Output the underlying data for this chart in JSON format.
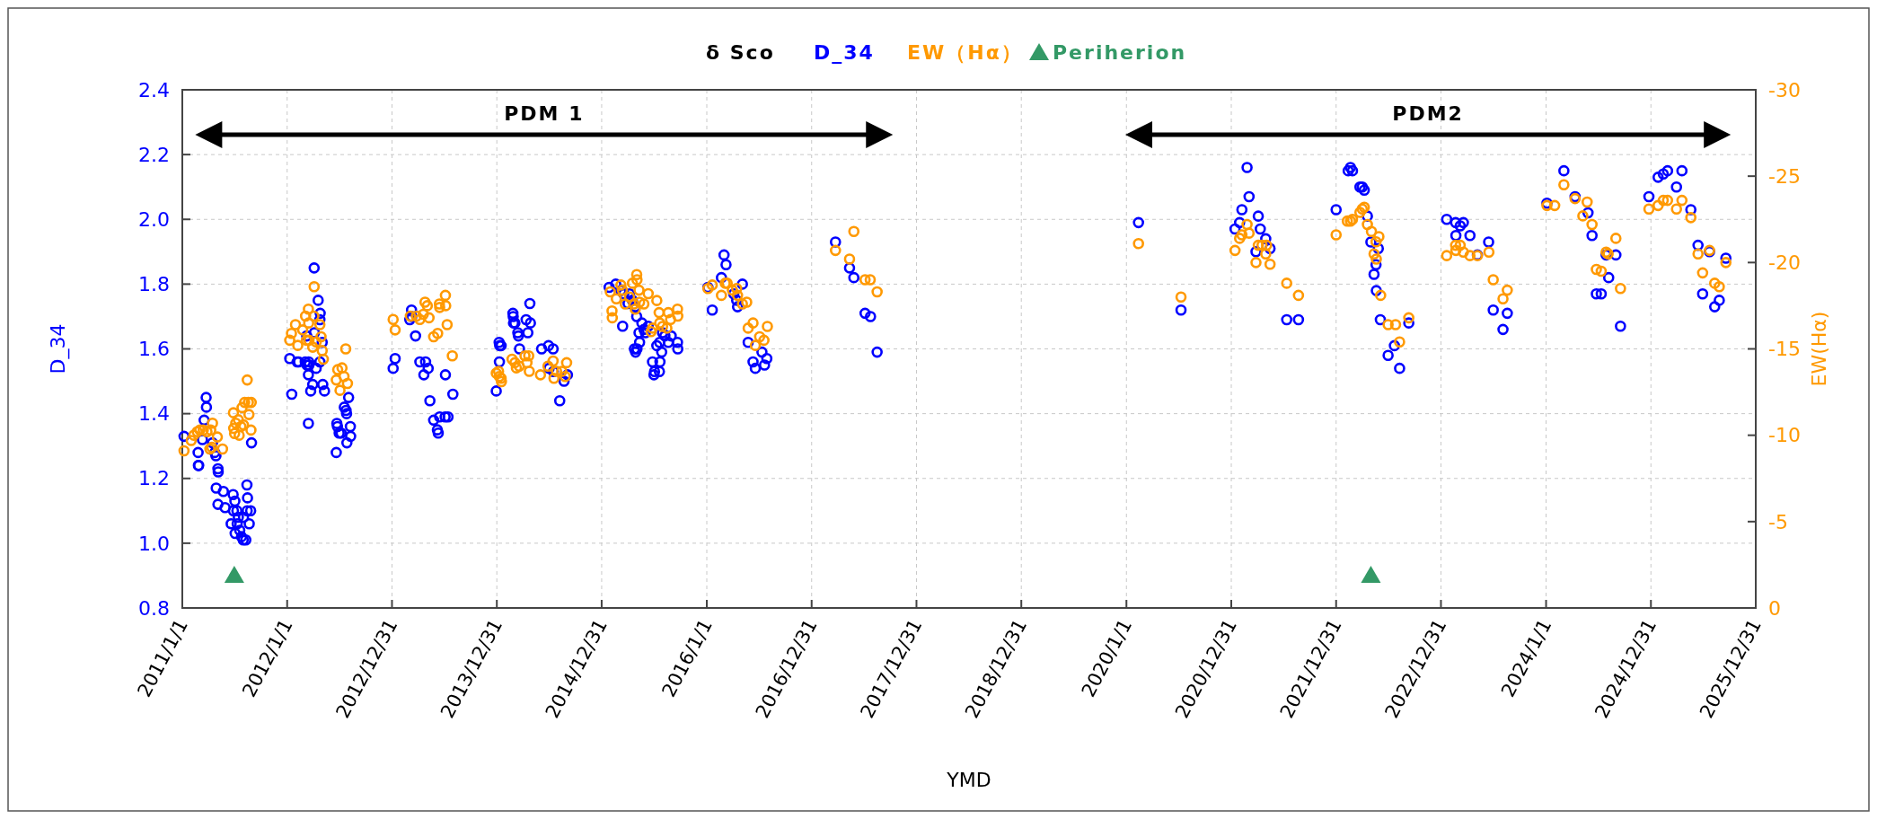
{
  "chart_data": {
    "type": "scatter",
    "legend_title": "δ Sco",
    "xlabel": "YMD",
    "ylabel": "D_34",
    "y2label": "EW(Hα)",
    "legend": "top",
    "grid": true,
    "marker": "circle",
    "xlim": [
      "2011-01-01",
      "2025-12-31"
    ],
    "xticks": [
      {
        "value": "2011-01-01",
        "label": "2011/1/1"
      },
      {
        "value": "2012-01-01",
        "label": "2012/1/1"
      },
      {
        "value": "2012-12-31",
        "label": "2012/12/31"
      },
      {
        "value": "2013-12-31",
        "label": "2013/12/31"
      },
      {
        "value": "2014-12-31",
        "label": "2014/12/31"
      },
      {
        "value": "2016-01-01",
        "label": "2016/1/1"
      },
      {
        "value": "2016-12-31",
        "label": "2016/12/31"
      },
      {
        "value": "2017-12-31",
        "label": "2017/12/31"
      },
      {
        "value": "2018-12-31",
        "label": "2018/12/31"
      },
      {
        "value": "2020-01-01",
        "label": "2020/1/1"
      },
      {
        "value": "2020-12-31",
        "label": "2020/12/31"
      },
      {
        "value": "2021-12-31",
        "label": "2021/12/31"
      },
      {
        "value": "2022-12-31",
        "label": "2022/12/31"
      },
      {
        "value": "2024-01-01",
        "label": "2024/1/1"
      },
      {
        "value": "2024-12-31",
        "label": "2024/12/31"
      },
      {
        "value": "2025-12-31",
        "label": "2025/12/31"
      }
    ],
    "ylim": [
      0.8,
      2.4
    ],
    "yticks": [
      0.8,
      {
        "value": 1,
        "label": "1.0"
      },
      1.2,
      1.4,
      1.6,
      1.8,
      {
        "value": 2,
        "label": "2.0"
      },
      2.2,
      2.4
    ],
    "y2lim": [
      0,
      -30
    ],
    "y2ticks": [
      0,
      -5,
      -10,
      -15,
      -20,
      -25,
      -30
    ],
    "annotations": [
      "PDM 1",
      "PDM2"
    ],
    "series": [
      {
        "name": "D_34",
        "color": "#0000ff",
        "marker": "circle",
        "x": [
          "2011-01-07",
          "2011-02-25",
          "2011-02-26",
          "2011-02-27",
          "2011-03-25",
          "2011-03-26",
          "2011-03-18",
          "2011-03-12",
          "2011-04-16",
          "2011-04-24",
          "2011-04-28",
          "2011-05-05",
          "2011-05-06",
          "2011-04-29",
          "2011-05-24",
          "2011-05-05",
          "2011-05-30",
          "2011-06-27",
          "2011-07-03",
          "2011-06-28",
          "2011-07-10",
          "2011-06-20",
          "2011-07-15",
          "2011-07-11",
          "2011-07-20",
          "2011-07-04",
          "2011-07-26",
          "2011-08-01",
          "2011-08-10",
          "2011-08-02",
          "2011-08-15",
          "2011-08-27",
          "2011-08-22",
          "2011-08-16",
          "2011-08-14",
          "2011-08-30",
          "2012-01-10",
          "2012-02-05",
          "2012-02-10",
          "2012-03-04",
          "2012-03-16",
          "2012-03-10",
          "2012-03-17",
          "2012-04-11",
          "2012-03-15",
          "2012-03-30",
          "2012-03-23",
          "2012-05-04",
          "2012-05-10",
          "2012-01-17",
          "2012-03-15",
          "2012-04-04",
          "2012-04-18",
          "2012-04-25",
          "2012-04-24",
          "2012-04-05",
          "2012-03-09",
          "2012-05-02",
          "2012-04-24",
          "2012-08-02",
          "2012-07-18",
          "2012-07-24",
          "2012-07-26",
          "2012-06-22",
          "2012-06-24",
          "2012-06-30",
          "2012-07-07",
          "2012-08-08",
          "2012-08-09",
          "2012-07-27",
          "2012-06-20",
          "2013-01-04",
          "2013-01-11",
          "2013-03-09",
          "2013-03-10",
          "2013-03-03",
          "2013-03-23",
          "2013-04-07",
          "2013-04-27",
          "2013-05-06",
          "2013-04-21",
          "2013-05-12",
          "2013-05-25",
          "2013-06-15",
          "2013-06-07",
          "2013-06-10",
          "2013-07-04",
          "2013-07-14",
          "2013-07-05",
          "2013-07-31",
          "2013-12-29",
          "2014-01-08",
          "2014-01-10",
          "2014-01-15",
          "2014-01-09",
          "2014-02-25",
          "2014-02-26",
          "2014-02-27",
          "2014-03-04",
          "2014-03-14",
          "2014-03-16",
          "2014-04-25",
          "2014-04-27",
          "2014-04-12",
          "2014-04-18",
          "2014-03-20",
          "2014-06-05",
          "2014-06-29",
          "2014-07-15",
          "2014-07-01",
          "2014-07-16",
          "2014-08-07",
          "2014-08-22",
          "2014-09-03",
          "2015-01-26",
          "2015-02-18",
          "2015-03-08",
          "2015-03-18",
          "2015-04-07",
          "2015-04-17",
          "2015-04-02",
          "2015-04-27",
          "2015-03-14",
          "2015-05-02",
          "2015-05-20",
          "2015-05-27",
          "2015-06-01",
          "2015-05-10",
          "2015-05-12",
          "2015-05-03",
          "2015-04-28",
          "2015-04-24",
          "2015-06-11",
          "2015-07-11",
          "2015-07-21",
          "2015-07-31",
          "2015-08-08",
          "2015-08-30",
          "2015-08-20",
          "2015-09-21",
          "2015-09-22",
          "2015-07-28",
          "2015-06-26",
          "2015-07-22",
          "2015-07-03",
          "2015-07-20",
          "2015-07-01",
          "2016-01-05",
          "2016-01-20",
          "2016-02-21",
          "2016-03-01",
          "2016-03-08",
          "2016-04-04",
          "2016-04-14",
          "2016-04-17",
          "2016-05-04",
          "2016-05-24",
          "2016-06-10",
          "2016-06-18",
          "2016-07-11",
          "2016-07-28",
          "2016-07-20",
          "2017-03-24",
          "2017-05-12",
          "2017-05-27",
          "2017-07-05",
          "2017-07-24",
          "2017-08-16",
          "2020-02-12",
          "2020-07-09",
          "2021-01-13",
          "2021-01-29",
          "2021-02-06",
          "2021-02-24",
          "2021-03-03",
          "2021-04-04",
          "2021-04-11",
          "2021-04-30",
          "2021-05-15",
          "2021-03-27",
          "2021-07-12",
          "2021-08-22",
          "2021-12-31",
          "2022-02-11",
          "2022-02-19",
          "2022-02-26",
          "2022-03-24",
          "2022-04-01",
          "2022-04-08",
          "2022-04-19",
          "2022-05-01",
          "2022-05-27",
          "2022-05-19",
          "2022-05-12",
          "2022-05-20",
          "2022-06-03",
          "2022-06-30",
          "2022-07-22",
          "2022-08-09",
          "2022-09-10",
          "2023-01-20",
          "2023-02-20",
          "2023-03-08",
          "2023-03-19",
          "2023-02-21",
          "2023-04-11",
          "2023-05-07",
          "2023-06-15",
          "2023-07-01",
          "2023-08-04",
          "2023-08-19",
          "2024-01-04",
          "2024-03-03",
          "2024-04-11",
          "2024-05-26",
          "2024-06-09",
          "2024-07-28",
          "2024-08-31",
          "2024-08-06",
          "2024-06-24",
          "2024-07-11",
          "2024-09-16",
          "2024-12-24",
          "2025-01-25",
          "2025-02-12",
          "2025-02-27",
          "2025-04-18",
          "2025-03-30",
          "2025-05-19",
          "2025-06-13",
          "2025-07-23",
          "2025-09-18",
          "2025-06-29",
          "2025-08-10",
          "2025-08-26"
        ],
        "values": [
          1.33,
          1.28,
          1.24,
          1.24,
          1.45,
          1.42,
          1.38,
          1.32,
          1.31,
          1.28,
          1.27,
          1.23,
          1.22,
          1.17,
          1.16,
          1.12,
          1.11,
          1.15,
          1.13,
          1.1,
          1.1,
          1.06,
          1.08,
          1.06,
          1.04,
          1.03,
          1.02,
          1.01,
          1.01,
          1.08,
          1.1,
          1.1,
          1.06,
          1.14,
          1.18,
          1.31,
          1.57,
          1.56,
          1.56,
          1.56,
          1.56,
          1.55,
          1.55,
          1.54,
          1.52,
          1.49,
          1.47,
          1.49,
          1.47,
          1.46,
          1.37,
          1.85,
          1.75,
          1.71,
          1.69,
          1.65,
          1.64,
          1.62,
          1.56,
          1.45,
          1.42,
          1.41,
          1.4,
          1.37,
          1.36,
          1.34,
          1.34,
          1.36,
          1.33,
          1.31,
          1.28,
          1.54,
          1.57,
          1.72,
          1.7,
          1.69,
          1.64,
          1.56,
          1.56,
          1.54,
          1.52,
          1.44,
          1.38,
          1.39,
          1.35,
          1.34,
          1.39,
          1.39,
          1.52,
          1.46,
          1.47,
          1.62,
          1.61,
          1.61,
          1.56,
          1.71,
          1.7,
          1.68,
          1.68,
          1.65,
          1.64,
          1.74,
          1.68,
          1.69,
          1.65,
          1.6,
          1.6,
          1.61,
          1.6,
          1.54,
          1.53,
          1.44,
          1.5,
          1.52,
          1.79,
          1.8,
          1.78,
          1.77,
          1.77,
          1.75,
          1.74,
          1.73,
          1.67,
          1.7,
          1.68,
          1.66,
          1.65,
          1.65,
          1.62,
          1.6,
          1.59,
          1.6,
          1.67,
          1.61,
          1.62,
          1.65,
          1.64,
          1.64,
          1.62,
          1.62,
          1.6,
          1.59,
          1.56,
          1.56,
          1.53,
          1.53,
          1.52,
          1.79,
          1.72,
          1.82,
          1.89,
          1.86,
          1.77,
          1.75,
          1.73,
          1.8,
          1.62,
          1.56,
          1.54,
          1.59,
          1.57,
          1.55,
          1.93,
          1.85,
          1.82,
          1.71,
          1.7,
          1.59,
          1.99,
          1.72,
          1.97,
          1.99,
          2.03,
          2.16,
          2.07,
          2.01,
          1.97,
          1.94,
          1.91,
          1.9,
          1.69,
          1.69,
          2.03,
          2.15,
          2.16,
          2.15,
          2.1,
          2.1,
          2.09,
          2.01,
          1.93,
          1.91,
          1.86,
          1.83,
          1.78,
          1.69,
          1.58,
          1.61,
          1.54,
          1.68,
          2.0,
          1.99,
          1.98,
          1.99,
          1.95,
          1.95,
          1.89,
          1.93,
          1.72,
          1.66,
          1.71,
          2.05,
          2.15,
          2.07,
          2.02,
          1.95,
          1.89,
          1.89,
          1.82,
          1.77,
          1.77,
          1.67,
          2.07,
          2.13,
          2.14,
          2.15,
          2.15,
          2.1,
          2.03,
          1.92,
          1.9,
          1.88,
          1.77,
          1.73,
          1.75
        ]
      },
      {
        "name": "EW（Hα）",
        "color": "#ff9900",
        "marker": "circle",
        "axis": "y2",
        "x": [
          "2011-01-07",
          "2011-02-01",
          "2011-02-10",
          "2011-02-22",
          "2011-03-03",
          "2011-03-15",
          "2011-03-28",
          "2011-04-10",
          "2011-04-16",
          "2011-04-07",
          "2011-04-14",
          "2011-05-03",
          "2011-05-21",
          "2011-06-28",
          "2011-06-29",
          "2011-07-06",
          "2011-07-15",
          "2011-07-24",
          "2011-08-02",
          "2011-07-02",
          "2011-07-18",
          "2011-07-28",
          "2011-08-06",
          "2011-08-19",
          "2011-08-29",
          "2011-08-21",
          "2011-08-15",
          "2011-08-28",
          "2012-01-10",
          "2012-01-16",
          "2012-01-30",
          "2012-02-07",
          "2012-02-24",
          "2012-03-05",
          "2012-03-15",
          "2012-03-16",
          "2012-03-08",
          "2012-03-17",
          "2012-04-03",
          "2012-04-11",
          "2012-03-30",
          "2012-04-04",
          "2012-04-24",
          "2012-04-28",
          "2012-05-02",
          "2012-05-06",
          "2012-06-20",
          "2012-07-03",
          "2012-06-25",
          "2012-07-10",
          "2012-07-17",
          "2012-07-29",
          "2012-07-23",
          "2013-01-04",
          "2013-01-11",
          "2013-03-05",
          "2013-03-26",
          "2013-04-07",
          "2013-04-19",
          "2013-04-25",
          "2013-05-09",
          "2013-05-03",
          "2013-06-14",
          "2013-06-15",
          "2013-07-05",
          "2013-07-06",
          "2013-07-11",
          "2013-05-25",
          "2013-06-08",
          "2013-07-29",
          "2013-12-29",
          "2014-01-06",
          "2014-01-15",
          "2014-01-16",
          "2014-01-09",
          "2014-02-22",
          "2014-03-04",
          "2014-03-09",
          "2014-03-19",
          "2014-04-08",
          "2014-04-21",
          "2014-04-15",
          "2014-04-23",
          "2014-06-01",
          "2014-06-27",
          "2014-07-15",
          "2014-07-27",
          "2014-08-14",
          "2014-08-26",
          "2014-08-31",
          "2014-07-18",
          "2015-01-30",
          "2015-02-05",
          "2015-02-06",
          "2015-03-08",
          "2015-03-13",
          "2015-04-17",
          "2015-05-02",
          "2015-05-03",
          "2015-05-10",
          "2015-06-11",
          "2015-02-20",
          "2015-03-23",
          "2015-04-07",
          "2015-04-22",
          "2015-05-12",
          "2015-05-27",
          "2015-07-11",
          "2015-04-27",
          "2015-07-19",
          "2015-08-20",
          "2015-09-21",
          "2015-09-22",
          "2015-08-28",
          "2015-07-21",
          "2015-07-31",
          "2015-08-15",
          "2015-06-26",
          "2015-06-21",
          "2016-01-05",
          "2016-01-20",
          "2016-02-21",
          "2016-03-05",
          "2016-03-12",
          "2016-03-30",
          "2016-04-14",
          "2016-04-17",
          "2016-05-04",
          "2016-05-19",
          "2016-05-24",
          "2016-06-10",
          "2016-07-03",
          "2016-07-18",
          "2016-07-30",
          "2016-06-18",
          "2017-05-27",
          "2017-03-24",
          "2017-05-12",
          "2017-07-05",
          "2017-07-23",
          "2017-08-16",
          "2020-02-12",
          "2020-07-09",
          "2021-01-13",
          "2021-01-29",
          "2021-02-06",
          "2021-02-24",
          "2021-03-03",
          "2021-03-27",
          "2021-04-04",
          "2021-04-17",
          "2021-05-03",
          "2021-04-30",
          "2021-05-15",
          "2021-07-12",
          "2021-08-22",
          "2021-12-31",
          "2022-02-08",
          "2022-02-19",
          "2022-02-26",
          "2022-03-24",
          "2022-04-01",
          "2022-04-08",
          "2022-04-19",
          "2022-05-03",
          "2022-05-29",
          "2022-05-19",
          "2022-05-12",
          "2022-05-20",
          "2022-06-04",
          "2022-06-30",
          "2022-07-26",
          "2022-08-09",
          "2022-09-10",
          "2023-01-20",
          "2023-02-20",
          "2023-02-21",
          "2023-03-08",
          "2023-03-19",
          "2023-04-11",
          "2023-05-07",
          "2023-06-16",
          "2023-07-01",
          "2023-08-04",
          "2023-08-19",
          "2024-01-04",
          "2024-01-31",
          "2024-03-03",
          "2024-04-11",
          "2024-05-23",
          "2024-05-08",
          "2024-06-09",
          "2024-07-28",
          "2024-08-04",
          "2024-08-31",
          "2024-06-24",
          "2024-07-11",
          "2024-09-16",
          "2024-12-24",
          "2025-01-25",
          "2025-02-12",
          "2025-02-27",
          "2025-04-18",
          "2025-03-30",
          "2025-05-19",
          "2025-06-13",
          "2025-07-23",
          "2025-06-29",
          "2025-08-10",
          "2025-08-26",
          "2025-09-18"
        ],
        "values": [
          -9.1,
          -9.7,
          -10.0,
          -10.2,
          -10.3,
          -10.3,
          -10.2,
          -10.3,
          -10.7,
          -9.2,
          -9.3,
          -9.9,
          -9.2,
          -11.3,
          -10.4,
          -10.7,
          -10.9,
          -10.5,
          -10.6,
          -10.1,
          -10.0,
          -11.6,
          -11.9,
          -11.9,
          -11.9,
          -11.2,
          -13.2,
          -10.3,
          -15.5,
          -15.9,
          -16.4,
          -15.2,
          -16.1,
          -16.9,
          -17.3,
          -16.5,
          -15.5,
          -15.5,
          -16.9,
          -15.4,
          -15.1,
          -18.6,
          -16.4,
          -15.7,
          -14.9,
          -14.4,
          -13.2,
          -12.6,
          -13.8,
          -13.9,
          -13.4,
          -13.0,
          -15.0,
          -16.7,
          -16.1,
          -16.9,
          -16.9,
          -16.7,
          -17.0,
          -17.7,
          -16.8,
          -17.5,
          -17.6,
          -17.4,
          -18.1,
          -17.5,
          -16.4,
          -15.7,
          -15.9,
          -14.6,
          -13.6,
          -13.7,
          -13.3,
          -13.1,
          -13.4,
          -14.4,
          -14.2,
          -13.9,
          -14.0,
          -14.6,
          -14.6,
          -14.2,
          -13.7,
          -13.5,
          -14.0,
          -14.3,
          -13.7,
          -13.7,
          -13.4,
          -14.2,
          -13.3,
          -18.3,
          -17.2,
          -16.8,
          -18.7,
          -18.4,
          -18.8,
          -19.3,
          -19.0,
          -18.4,
          -18.2,
          -17.9,
          -17.6,
          -18.0,
          -17.6,
          -17.7,
          -17.6,
          -17.8,
          -17.3,
          -17.1,
          -17.1,
          -17.3,
          -16.9,
          -16.7,
          -16.5,
          -16.3,
          -16.2,
          -16.2,
          -16.0,
          -18.5,
          -18.7,
          -18.1,
          -18.8,
          -18.8,
          -18.4,
          -18.5,
          -18.1,
          -17.6,
          -17.7,
          -16.2,
          -16.5,
          -15.7,
          -15.5,
          -16.3,
          -15.2,
          -21.8,
          -20.7,
          -20.2,
          -19.0,
          -19.0,
          -18.3,
          -21.1,
          -18.0,
          -20.7,
          -21.4,
          -21.6,
          -22.2,
          -21.7,
          -20.0,
          -21.0,
          -21.0,
          -21.0,
          -20.5,
          -19.9,
          -18.8,
          -18.1,
          -21.6,
          -22.4,
          -22.4,
          -22.5,
          -22.9,
          -23.1,
          -23.2,
          -22.2,
          -21.8,
          -21.5,
          -21.2,
          -20.5,
          -20.2,
          -18.1,
          -16.4,
          -16.4,
          -15.4,
          -16.8,
          -20.4,
          -21.0,
          -20.7,
          -21.0,
          -20.6,
          -20.4,
          -20.4,
          -20.6,
          -19.0,
          -17.9,
          -18.4,
          -23.3,
          -23.3,
          -24.5,
          -23.7,
          -23.5,
          -22.7,
          -22.2,
          -20.6,
          -20.5,
          -21.4,
          -19.6,
          -19.5,
          -18.5,
          -23.1,
          -23.3,
          -23.6,
          -23.6,
          -23.6,
          -23.1,
          -22.6,
          -20.5,
          -20.7,
          -19.4,
          -18.8,
          -18.6,
          -20.0
        ]
      },
      {
        "name": "Periherion",
        "color": "#339966",
        "marker": "triangle",
        "x": [
          "2011-07-01",
          "2022-05-01"
        ],
        "values": [
          0.9,
          0.9
        ]
      }
    ]
  }
}
